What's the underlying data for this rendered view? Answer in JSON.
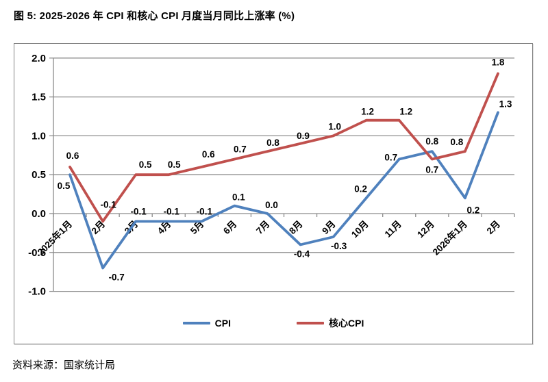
{
  "page": {
    "title": "图 5: 2025-2026 年 CPI 和核心 CPI 月度当月同比上涨率 (%)",
    "source": "资料来源：国家统计局"
  },
  "colors": {
    "cpi_line": "#4F81BD",
    "core_cpi_line": "#C0504D",
    "gridline": "#8C8C8C",
    "axis_text": "#000000",
    "frame_border": "#808080"
  },
  "chart_data": {
    "type": "line",
    "title": "图 5: 2025-2026 年 CPI 和核心 CPI 月度当月同比上涨率 (%)",
    "categories": [
      "2025年1月",
      "2月",
      "3月",
      "4月",
      "5月",
      "6月",
      "7月",
      "8月",
      "9月",
      "10月",
      "11月",
      "12月",
      "2026年1月",
      "2月"
    ],
    "series": [
      {
        "name": "CPI",
        "color": "#4F81BD",
        "values": [
          0.5,
          -0.7,
          -0.1,
          -0.1,
          -0.1,
          0.1,
          0.0,
          -0.4,
          -0.3,
          0.2,
          0.7,
          0.8,
          0.2,
          1.3
        ]
      },
      {
        "name": "核心CPI",
        "color": "#C0504D",
        "values": [
          0.6,
          -0.1,
          0.5,
          0.5,
          0.6,
          0.7,
          0.8,
          0.9,
          1.0,
          1.2,
          1.2,
          0.7,
          0.8,
          1.8
        ]
      }
    ],
    "ylim": [
      -1.0,
      2.0
    ],
    "ytick_interval": 0.5,
    "ytick_labels": [
      "2.0",
      "1.5",
      "1.0",
      "0.5",
      "0.0",
      "-0.5",
      "-1.0"
    ],
    "grid": true,
    "data_labels": true,
    "legend_position": "bottom",
    "xlabel": "",
    "ylabel": ""
  }
}
